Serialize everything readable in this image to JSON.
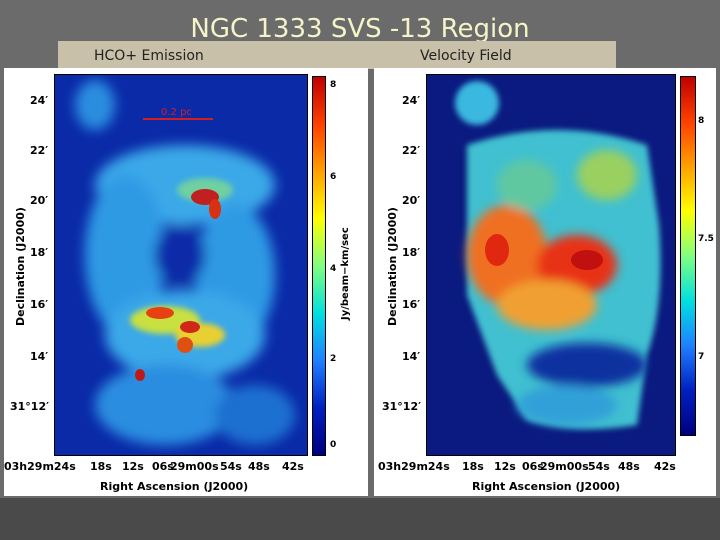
{
  "slide": {
    "title": "NGC 1333 SVS -13 Region",
    "left_label": "HCO+ Emission",
    "right_label": "Velocity Field"
  },
  "left_panel": {
    "dec_ticks": [
      "24′",
      "22′",
      "20′",
      "18′",
      "16′",
      "14′",
      "31°12′"
    ],
    "ra_ticks": [
      "03h29m24s",
      "18s",
      "12s",
      "06s",
      "29m00s",
      "54s",
      "48s",
      "42s"
    ],
    "xlabel": "Right Ascension (J2000)",
    "ylabel": "Declination (J2000)",
    "scale_bar": "0.2 pc",
    "colorbar_ticks": [
      "8",
      "6",
      "4",
      "2",
      "0"
    ],
    "colorbar_label": "Jy/beam−km/sec"
  },
  "right_panel": {
    "dec_ticks": [
      "24′",
      "22′",
      "20′",
      "18′",
      "16′",
      "14′",
      "31°12′"
    ],
    "ra_ticks": [
      "03h29m24s",
      "18s",
      "12s",
      "06s",
      "29m00s",
      "54s",
      "48s",
      "42s"
    ],
    "xlabel": "Right Ascension (J2000)",
    "ylabel": "Declination (J2000)",
    "colorbar_ticks": [
      "8",
      "7.5",
      "7"
    ]
  }
}
